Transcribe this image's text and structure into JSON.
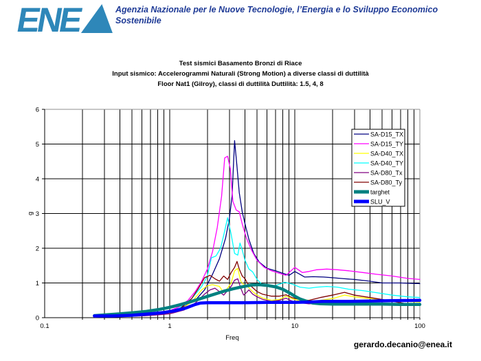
{
  "header": {
    "logo_text": "ENEA",
    "logo_color": "#2e87b9",
    "organization": "Agenzia Nazionale per le Nuove Tecnologie, l’Energia e lo Sviluppo Economico Sostenibile",
    "org_text_color": "#1e3a96"
  },
  "footer": {
    "email": "gerardo.decanio@enea.it"
  },
  "chart_data": {
    "type": "line",
    "title": "Test sismici Basamento Bronzi di Riace",
    "subtitle": "Input sismico:  Accelerogrammi Naturali (Strong Motion) a diverse classi di duttilità",
    "subtitle2": "Floor Nat1  (Gilroy), classi di duttilità  Duttilità: 1.5, 4, 8",
    "xlabel": "Freq",
    "ylabel": "g",
    "x_scale": "log",
    "xlim": [
      0.1,
      100
    ],
    "ylim": [
      0,
      6
    ],
    "x_tick_labels": [
      "0.1",
      "1",
      "10",
      "100"
    ],
    "x_tick_values": [
      0.1,
      1,
      10,
      100
    ],
    "y_tick_labels": [
      "0",
      "1",
      "2",
      "3",
      "4",
      "5",
      "6"
    ],
    "y_tick_values": [
      0,
      1,
      2,
      3,
      4,
      5,
      6
    ],
    "grid": true,
    "legend_position": "upper-right",
    "border_color": "#8c8c8c",
    "grid_color": "#000000",
    "series": [
      {
        "name": "SA-D15_TX",
        "color": "#000080",
        "width": 1.3,
        "points": [
          [
            0.25,
            0.03
          ],
          [
            0.35,
            0.04
          ],
          [
            0.5,
            0.07
          ],
          [
            0.7,
            0.11
          ],
          [
            1.0,
            0.19
          ],
          [
            1.3,
            0.32
          ],
          [
            1.6,
            0.5
          ],
          [
            1.9,
            0.8
          ],
          [
            2.2,
            1.25
          ],
          [
            2.5,
            1.7
          ],
          [
            2.8,
            2.3
          ],
          [
            3.0,
            2.85
          ],
          [
            3.15,
            3.5
          ],
          [
            3.3,
            5.1
          ],
          [
            3.45,
            4.35
          ],
          [
            3.6,
            3.6
          ],
          [
            3.8,
            3.05
          ],
          [
            4.0,
            2.7
          ],
          [
            4.3,
            2.25
          ],
          [
            4.7,
            1.85
          ],
          [
            5.2,
            1.6
          ],
          [
            6.0,
            1.42
          ],
          [
            7.0,
            1.35
          ],
          [
            8.0,
            1.28
          ],
          [
            9.0,
            1.22
          ],
          [
            10,
            1.33
          ],
          [
            11,
            1.25
          ],
          [
            12,
            1.17
          ],
          [
            14,
            1.18
          ],
          [
            17,
            1.17
          ],
          [
            20,
            1.15
          ],
          [
            25,
            1.12
          ],
          [
            30,
            1.1
          ],
          [
            40,
            1.05
          ],
          [
            50,
            1.0
          ],
          [
            70,
            1.0
          ],
          [
            100,
            0.98
          ]
        ]
      },
      {
        "name": "SA-D15_TY",
        "color": "#ff00ff",
        "width": 1.3,
        "points": [
          [
            0.25,
            0.02
          ],
          [
            0.4,
            0.04
          ],
          [
            0.6,
            0.08
          ],
          [
            0.8,
            0.13
          ],
          [
            1.0,
            0.2
          ],
          [
            1.2,
            0.32
          ],
          [
            1.4,
            0.5
          ],
          [
            1.6,
            0.75
          ],
          [
            1.8,
            1.05
          ],
          [
            2.0,
            1.4
          ],
          [
            2.2,
            1.9
          ],
          [
            2.4,
            2.6
          ],
          [
            2.6,
            3.5
          ],
          [
            2.75,
            4.6
          ],
          [
            2.9,
            4.65
          ],
          [
            3.05,
            4.3
          ],
          [
            3.2,
            3.35
          ],
          [
            3.4,
            3.1
          ],
          [
            3.6,
            3.05
          ],
          [
            3.8,
            2.7
          ],
          [
            4.1,
            2.3
          ],
          [
            4.5,
            1.95
          ],
          [
            5.0,
            1.65
          ],
          [
            5.7,
            1.45
          ],
          [
            6.5,
            1.35
          ],
          [
            7.5,
            1.28
          ],
          [
            8.5,
            1.22
          ],
          [
            10,
            1.45
          ],
          [
            11.5,
            1.3
          ],
          [
            13,
            1.33
          ],
          [
            15,
            1.38
          ],
          [
            18,
            1.4
          ],
          [
            22,
            1.38
          ],
          [
            27,
            1.35
          ],
          [
            35,
            1.3
          ],
          [
            45,
            1.25
          ],
          [
            60,
            1.2
          ],
          [
            80,
            1.13
          ],
          [
            100,
            1.1
          ]
        ]
      },
      {
        "name": "SA-D40_TX",
        "color": "#ffff00",
        "width": 1.3,
        "points": [
          [
            0.25,
            0.02
          ],
          [
            0.4,
            0.03
          ],
          [
            0.6,
            0.06
          ],
          [
            0.8,
            0.1
          ],
          [
            1.0,
            0.13
          ],
          [
            1.2,
            0.22
          ],
          [
            1.5,
            0.45
          ],
          [
            1.8,
            0.8
          ],
          [
            2.0,
            0.92
          ],
          [
            2.2,
            0.95
          ],
          [
            2.5,
            0.9
          ],
          [
            2.7,
            0.72
          ],
          [
            2.9,
            0.85
          ],
          [
            3.1,
            1.0
          ],
          [
            3.3,
            1.35
          ],
          [
            3.5,
            1.42
          ],
          [
            3.7,
            1.05
          ],
          [
            3.9,
            0.95
          ],
          [
            4.2,
            0.9
          ],
          [
            4.6,
            0.75
          ],
          [
            5.0,
            0.65
          ],
          [
            5.5,
            0.57
          ],
          [
            6.5,
            0.5
          ],
          [
            7.5,
            0.52
          ],
          [
            8.5,
            0.62
          ],
          [
            9.5,
            0.55
          ],
          [
            11,
            0.48
          ],
          [
            13,
            0.45
          ],
          [
            16,
            0.5
          ],
          [
            20,
            0.55
          ],
          [
            25,
            0.65
          ],
          [
            30,
            0.6
          ],
          [
            40,
            0.55
          ],
          [
            55,
            0.5
          ],
          [
            75,
            0.47
          ],
          [
            100,
            0.45
          ]
        ]
      },
      {
        "name": "SA-D40_TY",
        "color": "#00ffff",
        "width": 1.3,
        "points": [
          [
            0.25,
            0.02
          ],
          [
            0.4,
            0.04
          ],
          [
            0.6,
            0.08
          ],
          [
            0.8,
            0.12
          ],
          [
            1.0,
            0.16
          ],
          [
            1.2,
            0.28
          ],
          [
            1.5,
            0.55
          ],
          [
            1.8,
            0.9
          ],
          [
            2.0,
            1.2
          ],
          [
            2.15,
            1.72
          ],
          [
            2.35,
            1.78
          ],
          [
            2.55,
            2.0
          ],
          [
            2.75,
            2.5
          ],
          [
            2.9,
            2.88
          ],
          [
            3.1,
            2.4
          ],
          [
            3.3,
            1.85
          ],
          [
            3.5,
            1.8
          ],
          [
            3.65,
            2.15
          ],
          [
            3.8,
            1.95
          ],
          [
            4.0,
            1.65
          ],
          [
            4.3,
            1.4
          ],
          [
            4.6,
            1.32
          ],
          [
            5.0,
            1.1
          ],
          [
            5.5,
            0.95
          ],
          [
            6.2,
            0.9
          ],
          [
            7.0,
            0.92
          ],
          [
            8.3,
            1.02
          ],
          [
            9.5,
            0.97
          ],
          [
            11,
            0.88
          ],
          [
            13,
            0.85
          ],
          [
            15,
            0.88
          ],
          [
            18,
            0.9
          ],
          [
            22,
            0.88
          ],
          [
            27,
            0.82
          ],
          [
            35,
            0.78
          ],
          [
            45,
            0.72
          ],
          [
            60,
            0.65
          ],
          [
            80,
            0.6
          ],
          [
            100,
            0.58
          ]
        ]
      },
      {
        "name": "SA-D80_Tx",
        "color": "#800080",
        "width": 1.3,
        "points": [
          [
            0.25,
            0.02
          ],
          [
            0.4,
            0.03
          ],
          [
            0.6,
            0.05
          ],
          [
            0.8,
            0.08
          ],
          [
            1.0,
            0.11
          ],
          [
            1.3,
            0.22
          ],
          [
            1.6,
            0.42
          ],
          [
            1.9,
            0.68
          ],
          [
            2.1,
            0.8
          ],
          [
            2.3,
            0.85
          ],
          [
            2.5,
            0.75
          ],
          [
            2.7,
            0.65
          ],
          [
            2.9,
            0.78
          ],
          [
            3.1,
            0.9
          ],
          [
            3.3,
            1.08
          ],
          [
            3.5,
            1.12
          ],
          [
            3.7,
            0.85
          ],
          [
            3.9,
            0.65
          ],
          [
            4.1,
            0.72
          ],
          [
            4.3,
            0.8
          ],
          [
            4.6,
            0.68
          ],
          [
            5.0,
            0.6
          ],
          [
            5.5,
            0.53
          ],
          [
            6.5,
            0.47
          ],
          [
            7.5,
            0.5
          ],
          [
            8.5,
            0.56
          ],
          [
            9.5,
            0.48
          ],
          [
            11,
            0.43
          ],
          [
            13,
            0.4
          ],
          [
            16,
            0.42
          ],
          [
            20,
            0.45
          ],
          [
            25,
            0.5
          ],
          [
            30,
            0.45
          ],
          [
            40,
            0.42
          ],
          [
            55,
            0.4
          ],
          [
            75,
            0.37
          ],
          [
            100,
            0.36
          ]
        ]
      },
      {
        "name": "SA-D80_Ty",
        "color": "#800000",
        "width": 1.3,
        "points": [
          [
            0.25,
            0.02
          ],
          [
            0.4,
            0.04
          ],
          [
            0.6,
            0.07
          ],
          [
            0.8,
            0.1
          ],
          [
            1.0,
            0.14
          ],
          [
            1.2,
            0.25
          ],
          [
            1.5,
            0.55
          ],
          [
            1.7,
            0.85
          ],
          [
            1.9,
            1.15
          ],
          [
            2.1,
            1.22
          ],
          [
            2.3,
            1.12
          ],
          [
            2.5,
            1.05
          ],
          [
            2.7,
            1.2
          ],
          [
            2.9,
            1.1
          ],
          [
            3.1,
            1.3
          ],
          [
            3.3,
            1.45
          ],
          [
            3.45,
            1.62
          ],
          [
            3.6,
            1.4
          ],
          [
            3.8,
            1.2
          ],
          [
            4.0,
            1.12
          ],
          [
            4.2,
            0.98
          ],
          [
            4.5,
            0.9
          ],
          [
            5.0,
            0.75
          ],
          [
            5.5,
            0.68
          ],
          [
            6.5,
            0.62
          ],
          [
            7.5,
            0.62
          ],
          [
            8.5,
            0.66
          ],
          [
            9.5,
            0.58
          ],
          [
            11,
            0.52
          ],
          [
            13,
            0.5
          ],
          [
            16,
            0.58
          ],
          [
            20,
            0.65
          ],
          [
            25,
            0.73
          ],
          [
            30,
            0.65
          ],
          [
            40,
            0.58
          ],
          [
            55,
            0.5
          ],
          [
            70,
            0.43
          ],
          [
            85,
            0.38
          ],
          [
            100,
            0.37
          ]
        ]
      },
      {
        "name": "targhet",
        "color": "#008080",
        "width": 4.5,
        "points": [
          [
            0.25,
            0.06
          ],
          [
            0.3,
            0.08
          ],
          [
            0.4,
            0.11
          ],
          [
            0.5,
            0.14
          ],
          [
            0.65,
            0.18
          ],
          [
            0.8,
            0.23
          ],
          [
            1.0,
            0.3
          ],
          [
            1.2,
            0.37
          ],
          [
            1.5,
            0.47
          ],
          [
            1.8,
            0.56
          ],
          [
            2.2,
            0.66
          ],
          [
            2.7,
            0.76
          ],
          [
            3.2,
            0.83
          ],
          [
            3.8,
            0.89
          ],
          [
            4.5,
            0.94
          ],
          [
            5.2,
            0.95
          ],
          [
            6.0,
            0.93
          ],
          [
            7.0,
            0.89
          ],
          [
            8.0,
            0.82
          ],
          [
            9.0,
            0.72
          ],
          [
            10,
            0.62
          ],
          [
            11,
            0.54
          ],
          [
            12.5,
            0.47
          ],
          [
            14,
            0.42
          ],
          [
            16,
            0.4
          ],
          [
            20,
            0.39
          ],
          [
            30,
            0.39
          ],
          [
            50,
            0.39
          ],
          [
            70,
            0.38
          ],
          [
            100,
            0.38
          ]
        ]
      },
      {
        "name": "SLU_V",
        "color": "#0000ff",
        "width": 4.5,
        "points": [
          [
            0.25,
            0.05
          ],
          [
            0.35,
            0.05
          ],
          [
            0.5,
            0.07
          ],
          [
            0.7,
            0.11
          ],
          [
            0.9,
            0.15
          ],
          [
            1.1,
            0.2
          ],
          [
            1.35,
            0.28
          ],
          [
            1.6,
            0.38
          ],
          [
            1.75,
            0.42
          ],
          [
            2.0,
            0.43
          ],
          [
            3.0,
            0.43
          ],
          [
            4.0,
            0.43
          ],
          [
            6.0,
            0.44
          ],
          [
            8.0,
            0.44
          ],
          [
            10,
            0.44
          ],
          [
            13,
            0.45
          ],
          [
            17,
            0.47
          ],
          [
            25,
            0.47
          ],
          [
            40,
            0.48
          ],
          [
            60,
            0.49
          ],
          [
            100,
            0.5
          ]
        ]
      }
    ]
  }
}
